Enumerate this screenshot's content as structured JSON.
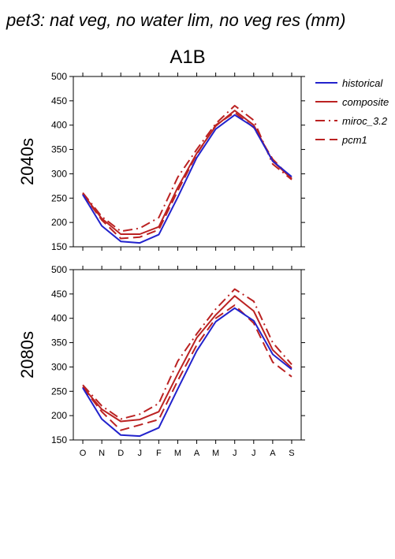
{
  "figure": {
    "title": "pet3: nat veg, no water lim, no veg res (mm)",
    "scenario": "A1B"
  },
  "legend": {
    "placement": "right-top",
    "entries": [
      {
        "label": "historical",
        "color": "#2222cc",
        "dash": "solid"
      },
      {
        "label": "composite",
        "color": "#bb2222",
        "dash": "solid"
      },
      {
        "label": "miroc_3.2",
        "color": "#bb2222",
        "dash": "dashdot"
      },
      {
        "label": "pcm1",
        "color": "#bb2222",
        "dash": "dashed"
      }
    ]
  },
  "chart_data": [
    {
      "type": "line",
      "panel_label": "2040s",
      "categories": [
        "O",
        "N",
        "D",
        "J",
        "F",
        "M",
        "A",
        "M",
        "J",
        "J",
        "A",
        "S"
      ],
      "ylim": [
        150,
        500
      ],
      "yticks": [
        150,
        200,
        250,
        300,
        350,
        400,
        450,
        500
      ],
      "series": [
        {
          "name": "historical",
          "values": [
            257,
            193,
            161,
            158,
            175,
            252,
            333,
            392,
            421,
            396,
            326,
            294
          ]
        },
        {
          "name": "composite",
          "values": [
            259,
            208,
            176,
            176,
            191,
            272,
            342,
            398,
            430,
            400,
            326,
            290
          ]
        },
        {
          "name": "miroc_3.2",
          "values": [
            261,
            212,
            182,
            188,
            210,
            293,
            350,
            403,
            440,
            410,
            320,
            288
          ]
        },
        {
          "name": "pcm1",
          "values": [
            258,
            205,
            167,
            170,
            185,
            265,
            340,
            400,
            426,
            395,
            330,
            290
          ]
        }
      ]
    },
    {
      "type": "line",
      "panel_label": "2080s",
      "categories": [
        "O",
        "N",
        "D",
        "J",
        "F",
        "M",
        "A",
        "M",
        "J",
        "J",
        "A",
        "S"
      ],
      "ylim": [
        150,
        500
      ],
      "yticks": [
        150,
        200,
        250,
        300,
        350,
        400,
        450,
        500
      ],
      "series": [
        {
          "name": "historical",
          "values": [
            257,
            193,
            160,
            158,
            175,
            255,
            333,
            393,
            421,
            395,
            326,
            295
          ]
        },
        {
          "name": "composite",
          "values": [
            259,
            213,
            188,
            192,
            208,
            286,
            360,
            407,
            446,
            415,
            335,
            298
          ]
        },
        {
          "name": "miroc_3.2",
          "values": [
            263,
            220,
            193,
            203,
            225,
            312,
            368,
            419,
            460,
            435,
            350,
            305
          ]
        },
        {
          "name": "pcm1",
          "values": [
            258,
            208,
            170,
            181,
            192,
            272,
            345,
            400,
            427,
            390,
            310,
            280
          ]
        }
      ]
    }
  ]
}
